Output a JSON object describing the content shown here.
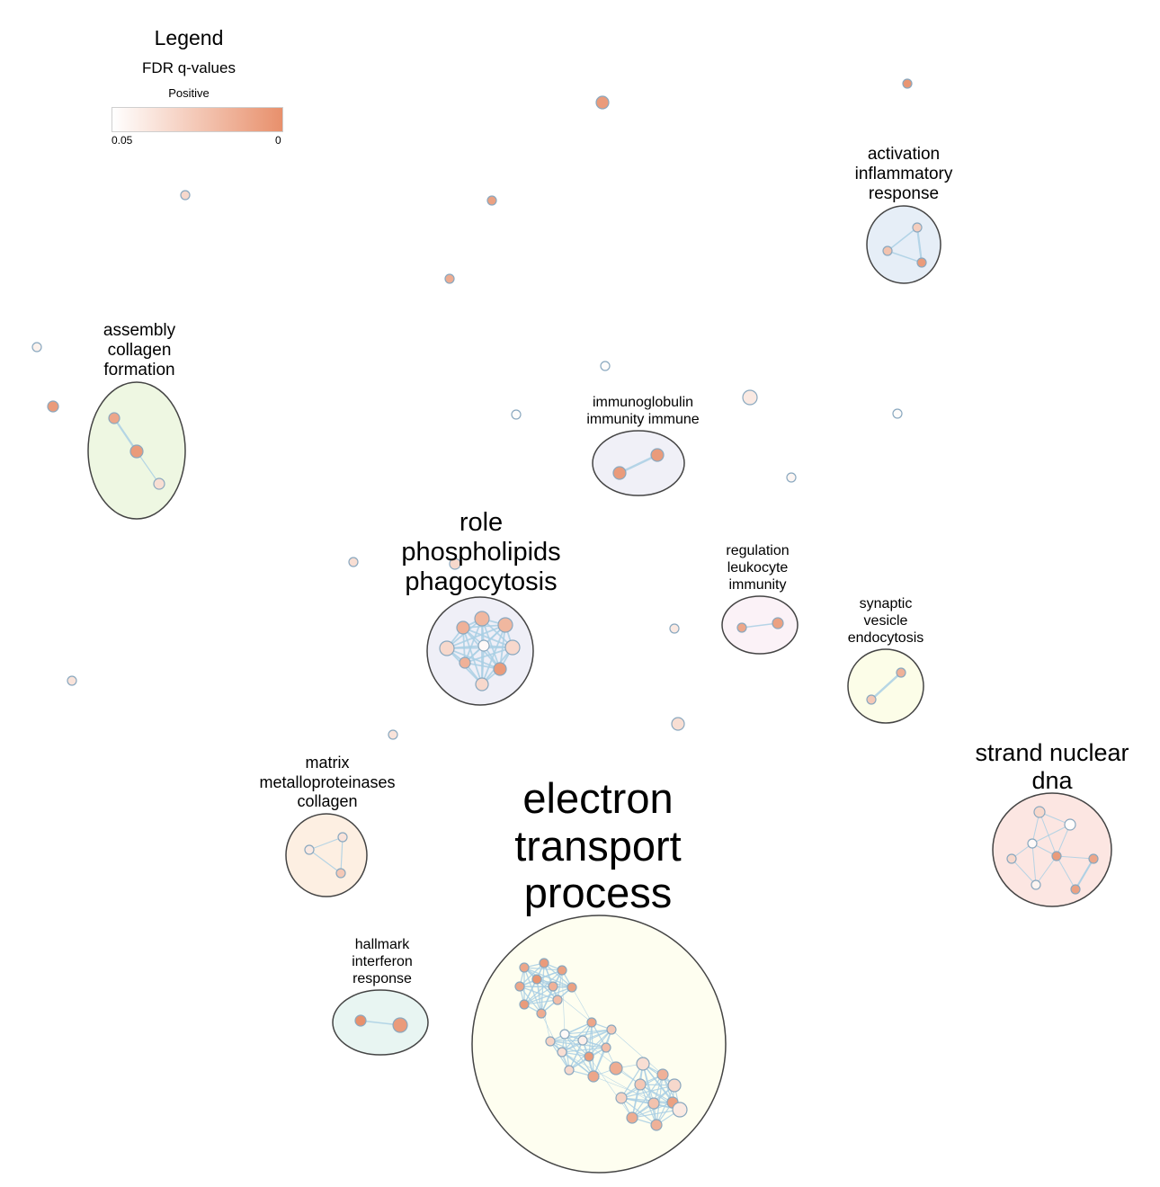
{
  "legend": {
    "title": "Legend",
    "metric": "FDR q-values",
    "direction": "Positive",
    "scale_min_label": "0.05",
    "scale_max_label": "0"
  },
  "colors": {
    "high": "#e8906c",
    "low": "#ffffff",
    "edge": "#a9cfe4",
    "node_stroke": "#8aa8bf"
  },
  "clusters": [
    {
      "id": "electron",
      "label": "electron\ntransport\nprocess",
      "fill": "#fefef0"
    },
    {
      "id": "role",
      "label": "role\nphospholipids\nphagocytosis",
      "fill": "#efeff7"
    },
    {
      "id": "strand",
      "label": "strand nuclear\ndna",
      "fill": "#fce6e2"
    },
    {
      "id": "assembly",
      "label": "assembly\ncollagen\nformation",
      "fill": "#eef7e2"
    },
    {
      "id": "activation",
      "label": "activation\ninflammatory\nresponse",
      "fill": "#e6eef7"
    },
    {
      "id": "immunoglobulin",
      "label": "immunoglobulin\nimmunity immune",
      "fill": "#f0f0f7"
    },
    {
      "id": "regulation",
      "label": "regulation\nleukocyte\nimmunity",
      "fill": "#fbf2f7"
    },
    {
      "id": "synaptic",
      "label": "synaptic\nvesicle\nendocytosis",
      "fill": "#fcfde8"
    },
    {
      "id": "matrix",
      "label": "matrix\nmetalloproteinases\ncollagen",
      "fill": "#fdefe2"
    },
    {
      "id": "hallmark",
      "label": "hallmark\ninterferon\nresponse",
      "fill": "#e8f5f2"
    }
  ]
}
